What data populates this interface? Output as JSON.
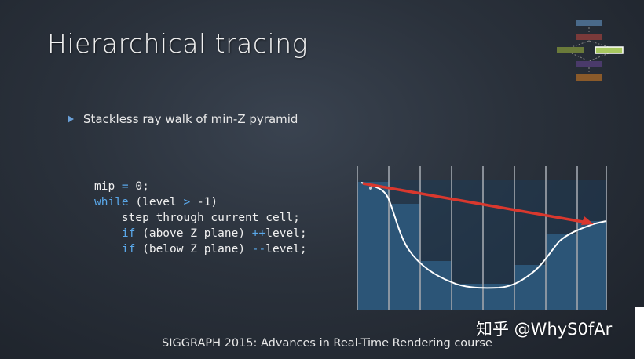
{
  "slide": {
    "title": "Hierarchical tracing",
    "bullet": "Stackless ray walk of min-Z pyramid",
    "code": {
      "line1_a": "mip ",
      "line1_op": "=",
      "line1_b": " 0;",
      "line2_kw": "while",
      "line2_a": " (level ",
      "line2_op": ">",
      "line2_b": " -1)",
      "line3": "    step through current cell;",
      "line4_kw": "if",
      "line4_a": " (above Z plane) ",
      "line4_op": "++",
      "line4_b": "level;",
      "line5_kw": "if",
      "line5_a": " (below Z plane) ",
      "line5_op": "--",
      "line5_b": "level;"
    },
    "footer": "SIGGRAPH 2015: Advances in Real-Time Rendering course",
    "watermark": "知乎 @WhyS0fAr"
  },
  "colors": {
    "bar_fill": "#2c5577",
    "ray": "#d9382e",
    "accent": "#5aa8ea"
  }
}
